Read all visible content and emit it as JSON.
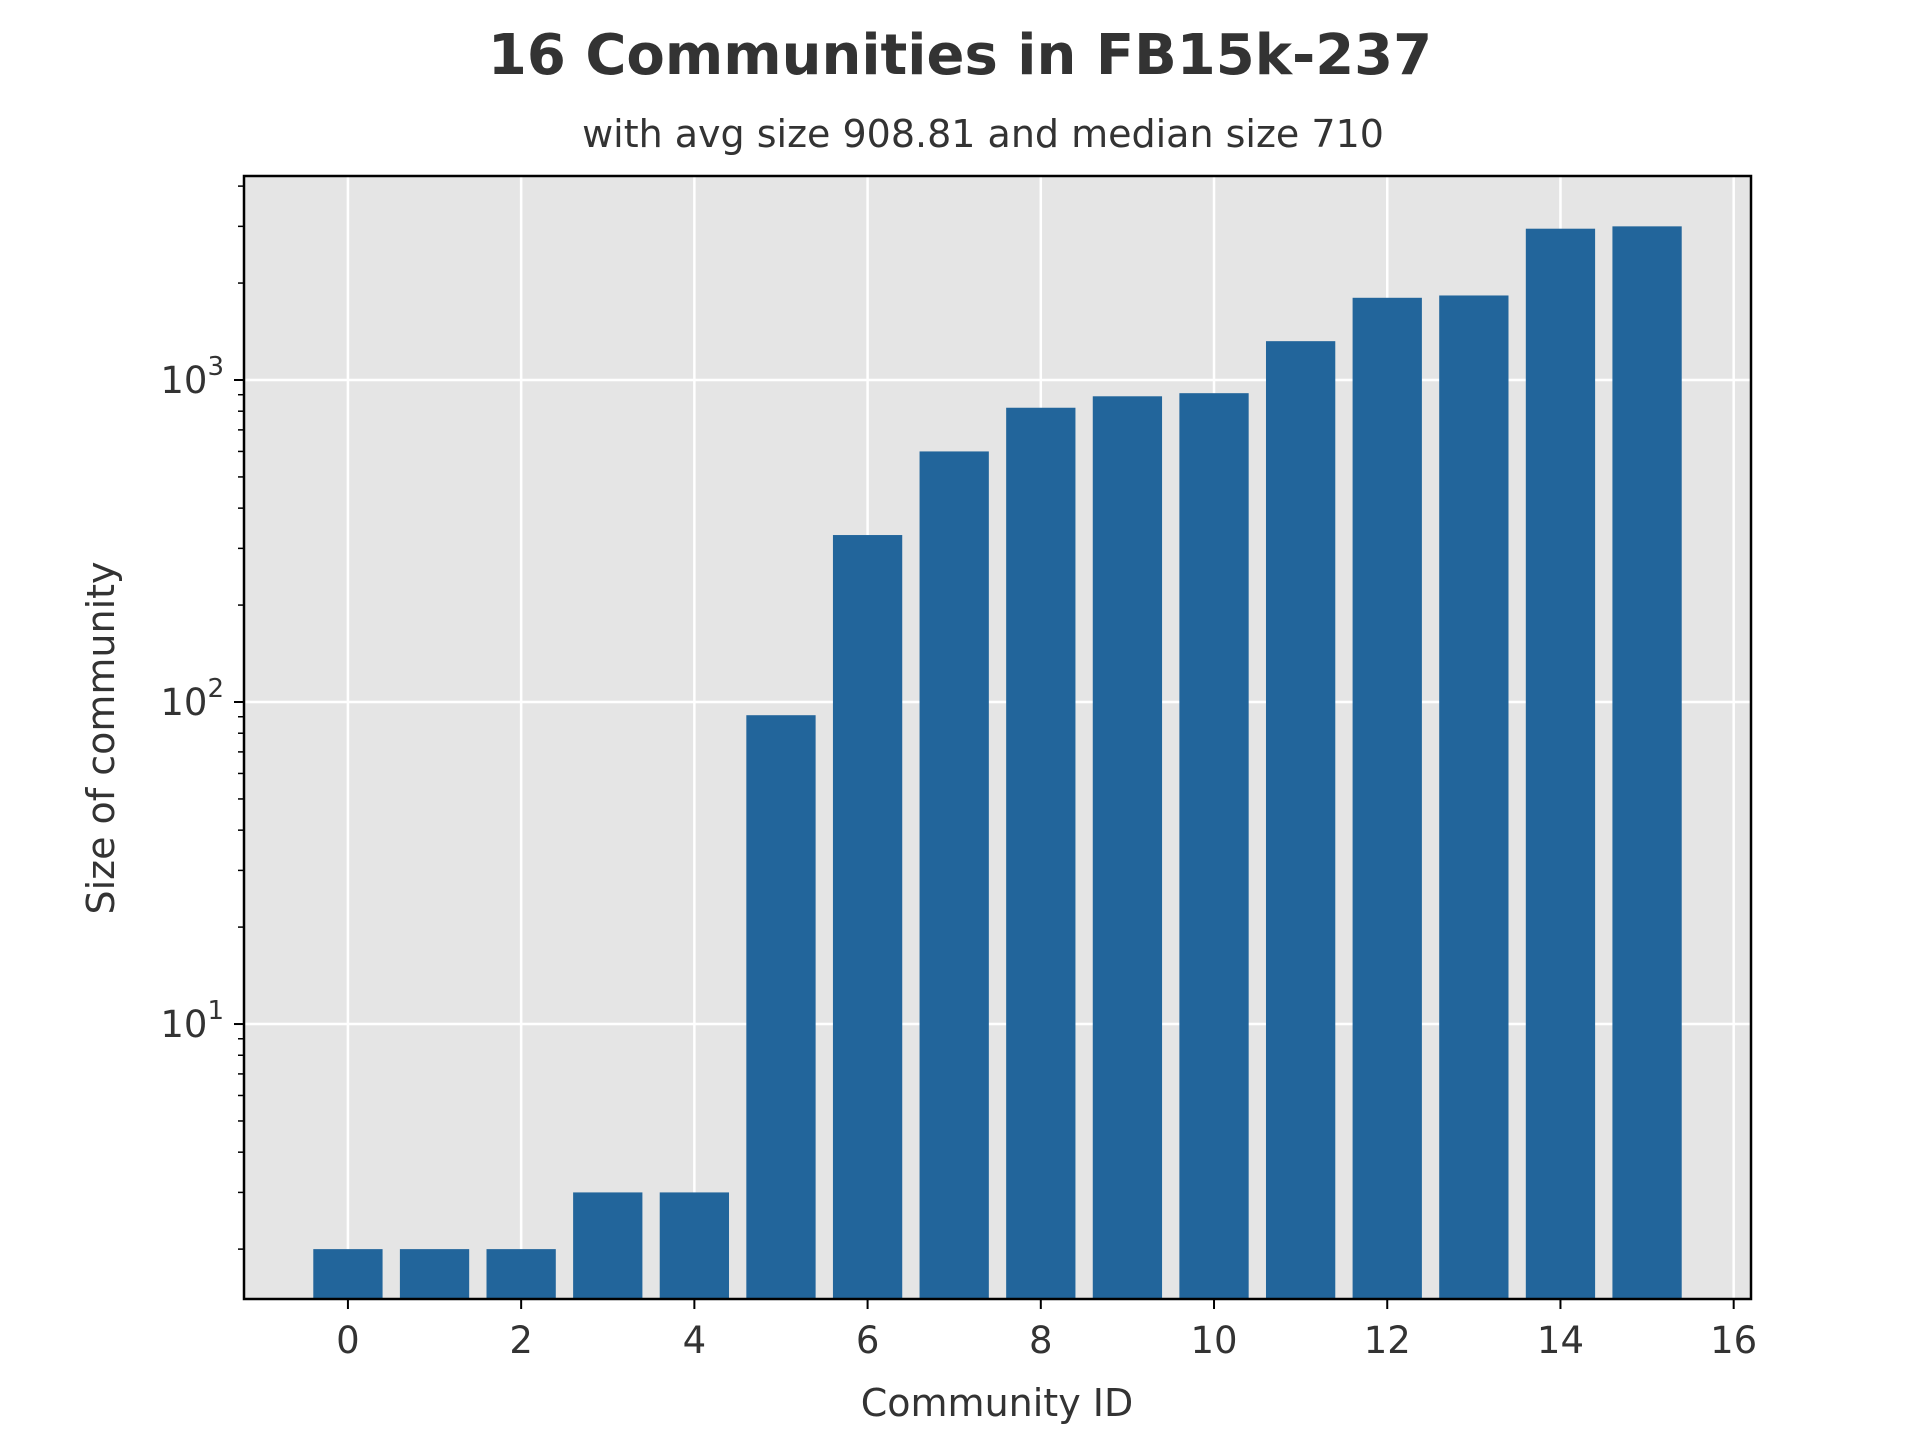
{
  "chart_data": {
    "type": "bar",
    "title": "16 Communities in FB15k-237",
    "subtitle": "with avg size 908.81 and median size 710",
    "xlabel": "Community ID",
    "ylabel": "Size of community",
    "yscale": "log",
    "grid": true,
    "x": [
      0,
      1,
      2,
      3,
      4,
      5,
      6,
      7,
      8,
      9,
      10,
      11,
      12,
      13,
      14,
      15
    ],
    "values": [
      2,
      2,
      2,
      3,
      3,
      91,
      330,
      600,
      820,
      890,
      910,
      1320,
      1800,
      1830,
      2950,
      3000
    ],
    "xlim": [
      -1.2,
      16.2
    ],
    "ylim": [
      1.4,
      4300
    ],
    "xticks": [
      "0",
      "2",
      "4",
      "6",
      "8",
      "10",
      "12",
      "14",
      "16"
    ],
    "xtick_values": [
      0,
      2,
      4,
      6,
      8,
      10,
      12,
      14,
      16
    ],
    "yticks": [
      {
        "value": 10,
        "base": "10",
        "exp": "1"
      },
      {
        "value": 100,
        "base": "10",
        "exp": "2"
      },
      {
        "value": 1000,
        "base": "10",
        "exp": "3"
      }
    ],
    "colors": {
      "bar": "#22659b",
      "plot_bg": "#e5e5e5",
      "grid": "#ffffff",
      "text": "#333333"
    }
  }
}
